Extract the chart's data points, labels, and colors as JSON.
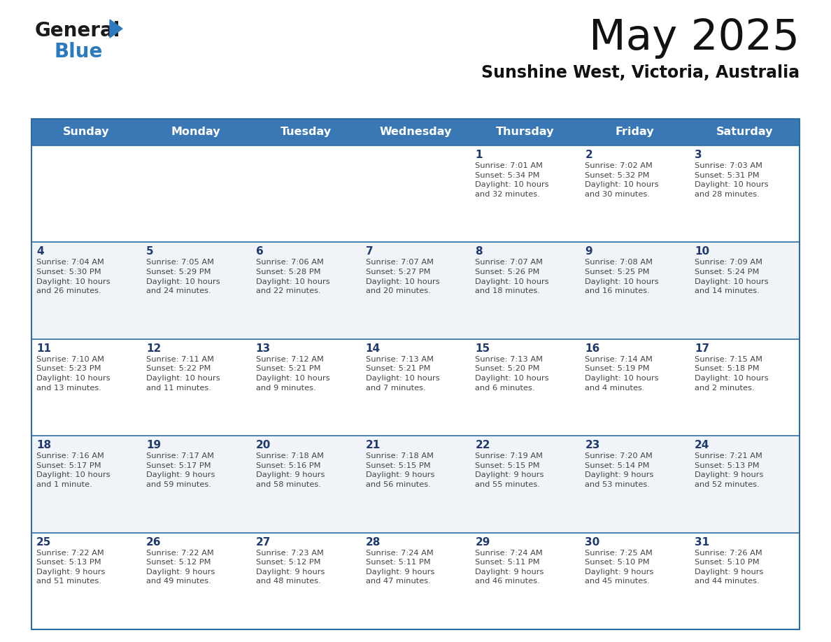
{
  "title": "May 2025",
  "subtitle": "Sunshine West, Victoria, Australia",
  "header_bg_color": "#3A78B5",
  "header_text_color": "#FFFFFF",
  "cell_bg_even": "#FFFFFF",
  "cell_bg_odd": "#F0F4F8",
  "day_number_color": "#1E3A6E",
  "cell_text_color": "#444444",
  "border_color": "#2E6DA4",
  "days_of_week": [
    "Sunday",
    "Monday",
    "Tuesday",
    "Wednesday",
    "Thursday",
    "Friday",
    "Saturday"
  ],
  "weeks": [
    [
      {
        "day": "",
        "text": ""
      },
      {
        "day": "",
        "text": ""
      },
      {
        "day": "",
        "text": ""
      },
      {
        "day": "",
        "text": ""
      },
      {
        "day": "1",
        "text": "Sunrise: 7:01 AM\nSunset: 5:34 PM\nDaylight: 10 hours\nand 32 minutes."
      },
      {
        "day": "2",
        "text": "Sunrise: 7:02 AM\nSunset: 5:32 PM\nDaylight: 10 hours\nand 30 minutes."
      },
      {
        "day": "3",
        "text": "Sunrise: 7:03 AM\nSunset: 5:31 PM\nDaylight: 10 hours\nand 28 minutes."
      }
    ],
    [
      {
        "day": "4",
        "text": "Sunrise: 7:04 AM\nSunset: 5:30 PM\nDaylight: 10 hours\nand 26 minutes."
      },
      {
        "day": "5",
        "text": "Sunrise: 7:05 AM\nSunset: 5:29 PM\nDaylight: 10 hours\nand 24 minutes."
      },
      {
        "day": "6",
        "text": "Sunrise: 7:06 AM\nSunset: 5:28 PM\nDaylight: 10 hours\nand 22 minutes."
      },
      {
        "day": "7",
        "text": "Sunrise: 7:07 AM\nSunset: 5:27 PM\nDaylight: 10 hours\nand 20 minutes."
      },
      {
        "day": "8",
        "text": "Sunrise: 7:07 AM\nSunset: 5:26 PM\nDaylight: 10 hours\nand 18 minutes."
      },
      {
        "day": "9",
        "text": "Sunrise: 7:08 AM\nSunset: 5:25 PM\nDaylight: 10 hours\nand 16 minutes."
      },
      {
        "day": "10",
        "text": "Sunrise: 7:09 AM\nSunset: 5:24 PM\nDaylight: 10 hours\nand 14 minutes."
      }
    ],
    [
      {
        "day": "11",
        "text": "Sunrise: 7:10 AM\nSunset: 5:23 PM\nDaylight: 10 hours\nand 13 minutes."
      },
      {
        "day": "12",
        "text": "Sunrise: 7:11 AM\nSunset: 5:22 PM\nDaylight: 10 hours\nand 11 minutes."
      },
      {
        "day": "13",
        "text": "Sunrise: 7:12 AM\nSunset: 5:21 PM\nDaylight: 10 hours\nand 9 minutes."
      },
      {
        "day": "14",
        "text": "Sunrise: 7:13 AM\nSunset: 5:21 PM\nDaylight: 10 hours\nand 7 minutes."
      },
      {
        "day": "15",
        "text": "Sunrise: 7:13 AM\nSunset: 5:20 PM\nDaylight: 10 hours\nand 6 minutes."
      },
      {
        "day": "16",
        "text": "Sunrise: 7:14 AM\nSunset: 5:19 PM\nDaylight: 10 hours\nand 4 minutes."
      },
      {
        "day": "17",
        "text": "Sunrise: 7:15 AM\nSunset: 5:18 PM\nDaylight: 10 hours\nand 2 minutes."
      }
    ],
    [
      {
        "day": "18",
        "text": "Sunrise: 7:16 AM\nSunset: 5:17 PM\nDaylight: 10 hours\nand 1 minute."
      },
      {
        "day": "19",
        "text": "Sunrise: 7:17 AM\nSunset: 5:17 PM\nDaylight: 9 hours\nand 59 minutes."
      },
      {
        "day": "20",
        "text": "Sunrise: 7:18 AM\nSunset: 5:16 PM\nDaylight: 9 hours\nand 58 minutes."
      },
      {
        "day": "21",
        "text": "Sunrise: 7:18 AM\nSunset: 5:15 PM\nDaylight: 9 hours\nand 56 minutes."
      },
      {
        "day": "22",
        "text": "Sunrise: 7:19 AM\nSunset: 5:15 PM\nDaylight: 9 hours\nand 55 minutes."
      },
      {
        "day": "23",
        "text": "Sunrise: 7:20 AM\nSunset: 5:14 PM\nDaylight: 9 hours\nand 53 minutes."
      },
      {
        "day": "24",
        "text": "Sunrise: 7:21 AM\nSunset: 5:13 PM\nDaylight: 9 hours\nand 52 minutes."
      }
    ],
    [
      {
        "day": "25",
        "text": "Sunrise: 7:22 AM\nSunset: 5:13 PM\nDaylight: 9 hours\nand 51 minutes."
      },
      {
        "day": "26",
        "text": "Sunrise: 7:22 AM\nSunset: 5:12 PM\nDaylight: 9 hours\nand 49 minutes."
      },
      {
        "day": "27",
        "text": "Sunrise: 7:23 AM\nSunset: 5:12 PM\nDaylight: 9 hours\nand 48 minutes."
      },
      {
        "day": "28",
        "text": "Sunrise: 7:24 AM\nSunset: 5:11 PM\nDaylight: 9 hours\nand 47 minutes."
      },
      {
        "day": "29",
        "text": "Sunrise: 7:24 AM\nSunset: 5:11 PM\nDaylight: 9 hours\nand 46 minutes."
      },
      {
        "day": "30",
        "text": "Sunrise: 7:25 AM\nSunset: 5:10 PM\nDaylight: 9 hours\nand 45 minutes."
      },
      {
        "day": "31",
        "text": "Sunrise: 7:26 AM\nSunset: 5:10 PM\nDaylight: 9 hours\nand 44 minutes."
      }
    ]
  ],
  "logo_text_color": "#1A1A1A",
  "logo_blue_color": "#2E7ABF",
  "fig_width": 11.88,
  "fig_height": 9.18,
  "dpi": 100
}
